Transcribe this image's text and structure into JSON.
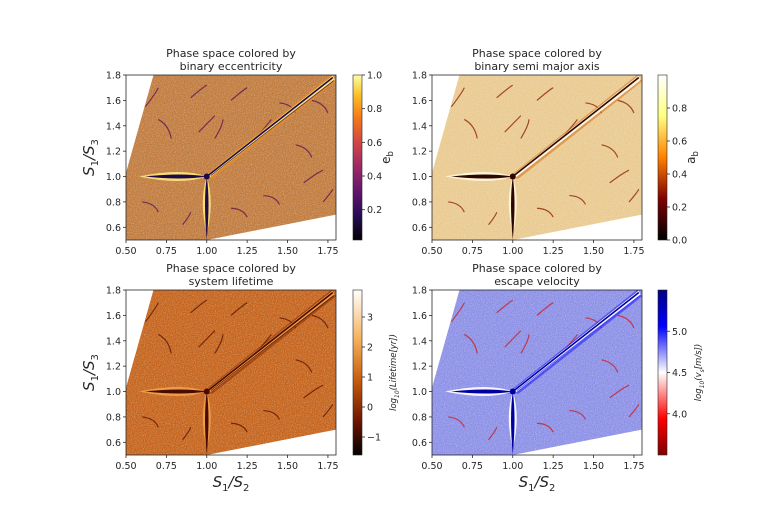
{
  "figure": {
    "shared_xlabel": "S1/S2",
    "shared_ylabel": "S1/S3"
  },
  "chart_data": [
    {
      "type": "heatmap",
      "title_lines": [
        "Phase space colored by",
        "binary eccentricity"
      ],
      "xlim": [
        0.5,
        1.8
      ],
      "ylim": [
        0.5,
        1.8
      ],
      "x_ticks": [
        "0.50",
        "0.75",
        "1.00",
        "1.25",
        "1.50",
        "1.75"
      ],
      "y_ticks": [
        "0.6",
        "0.8",
        "1.0",
        "1.2",
        "1.4",
        "1.6",
        "1.8"
      ],
      "ylabel": "S1/S3",
      "xlabel": "",
      "colorbar": {
        "label": "e_b",
        "label_main": "e",
        "label_sub": "b",
        "cmap": "inferno",
        "ticks": [
          "0.2",
          "0.4",
          "0.6",
          "0.8",
          "1.0"
        ],
        "range": [
          0.02,
          1.0
        ],
        "label_style": "plain"
      },
      "background_color": "#c07a3c",
      "grid": true
    },
    {
      "type": "heatmap",
      "title_lines": [
        "Phase space colored by",
        "binary semi major axis"
      ],
      "xlim": [
        0.5,
        1.8
      ],
      "ylim": [
        0.5,
        1.8
      ],
      "x_ticks": [
        "0.50",
        "0.75",
        "1.00",
        "1.25",
        "1.50",
        "1.75"
      ],
      "y_ticks": [
        "0.6",
        "0.8",
        "1.0",
        "1.2",
        "1.4",
        "1.6",
        "1.8"
      ],
      "ylabel": "",
      "xlabel": "",
      "colorbar": {
        "label": "a_b",
        "label_main": "a",
        "label_sub": "b",
        "cmap": "afmhot",
        "ticks": [
          "0.0",
          "0.2",
          "0.4",
          "0.6",
          "0.8"
        ],
        "range": [
          0.0,
          1.0
        ],
        "label_style": "plain"
      },
      "background_color": "#e9c98e",
      "grid": true
    },
    {
      "type": "heatmap",
      "title_lines": [
        "Phase space colored by",
        "system lifetime"
      ],
      "xlim": [
        0.5,
        1.8
      ],
      "ylim": [
        0.5,
        1.8
      ],
      "x_ticks": [
        "0.50",
        "0.75",
        "1.00",
        "1.25",
        "1.50",
        "1.75"
      ],
      "y_ticks": [
        "0.6",
        "0.8",
        "1.0",
        "1.2",
        "1.4",
        "1.6",
        "1.8"
      ],
      "ylabel": "S1/S3",
      "xlabel": "S1/S2",
      "colorbar": {
        "label": "log10(Lifetime[yr])",
        "label_main": "log",
        "label_sub": "10",
        "label_rest": "(Lifetime[yr])",
        "cmap": "lifetime",
        "ticks": [
          "−1",
          "0",
          "1",
          "2",
          "3"
        ],
        "range": [
          -1.6,
          3.9
        ],
        "label_style": "log"
      },
      "background_color": "#c4621a",
      "grid": true
    },
    {
      "type": "heatmap",
      "title_lines": [
        "Phase space colored by",
        "escape velocity"
      ],
      "xlim": [
        0.5,
        1.8
      ],
      "ylim": [
        0.5,
        1.8
      ],
      "x_ticks": [
        "0.50",
        "0.75",
        "1.00",
        "1.25",
        "1.50",
        "1.75"
      ],
      "y_ticks": [
        "0.6",
        "0.8",
        "1.0",
        "1.2",
        "1.4",
        "1.6",
        "1.8"
      ],
      "ylabel": "",
      "xlabel": "S1/S2",
      "colorbar": {
        "label": "log10(v_s[m/s])",
        "label_main": "log",
        "label_sub": "10",
        "label_rest": "(v",
        "label_sub2": "s",
        "label_tail": "[m/s])",
        "cmap": "bwr_rev",
        "ticks": [
          "4.0",
          "4.5",
          "5.0"
        ],
        "range": [
          3.5,
          5.5
        ],
        "label_style": "logv"
      },
      "background_color": "#8b8fe6",
      "grid": true
    }
  ]
}
